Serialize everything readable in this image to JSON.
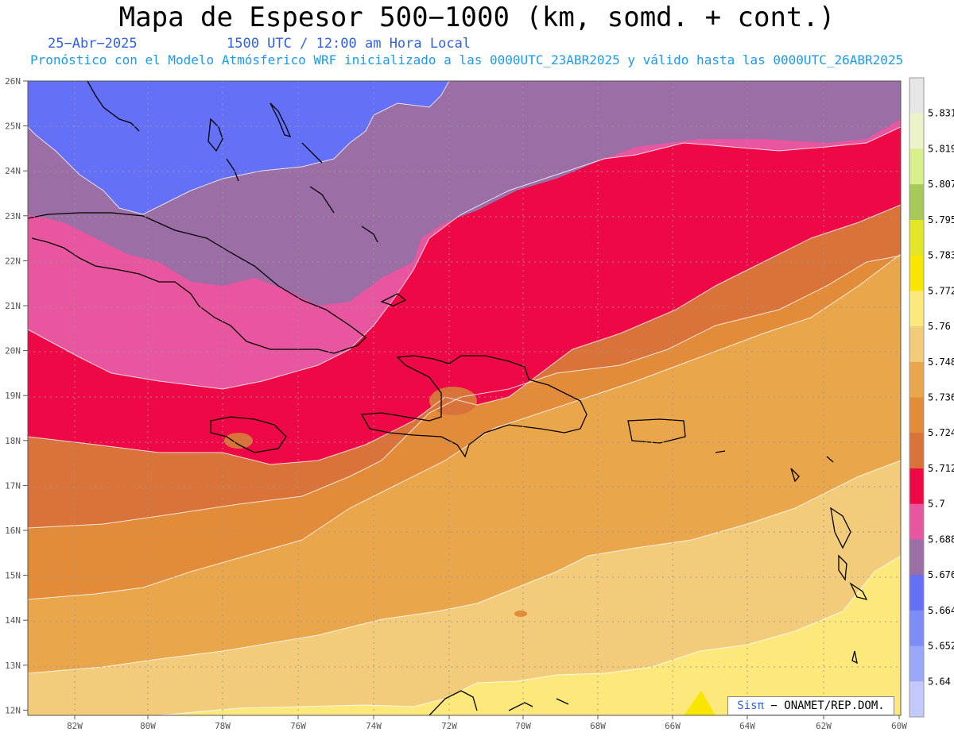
{
  "header": {
    "title": "Mapa de Espesor 500−1000 (km, somd. + cont.)",
    "date": "25−Abr−2025",
    "time": "1500 UTC / 12:00 am Hora Local",
    "forecast": "Pronóstico con el Modelo Atmósferico WRF inicializado a las 0000UTC_23ABR2025 y válido hasta las  0000UTC_26ABR2025"
  },
  "axes": {
    "lat_labels": [
      "26N",
      "25N",
      "24N",
      "23N",
      "22N",
      "21N",
      "20N",
      "19N",
      "18N",
      "17N",
      "16N",
      "15N",
      "14N",
      "13N",
      "12N"
    ],
    "lon_labels": [
      "82W",
      "80W",
      "78W",
      "76W",
      "74W",
      "72W",
      "70W",
      "68W",
      "66W",
      "64W",
      "62W",
      "60W"
    ]
  },
  "colorbar": {
    "levels": [
      "5.64",
      "5.652",
      "5.664",
      "5.676",
      "5.688",
      "5.7",
      "5.712",
      "5.724",
      "5.736",
      "5.748",
      "5.76",
      "5.772",
      "5.783",
      "5.795",
      "5.807",
      "5.819",
      "5.831"
    ],
    "colors": [
      "#c3c9fa",
      "#9ba8fa",
      "#7d8df8",
      "#6470f5",
      "#9b6ea6",
      "#e856a0",
      "#ee0845",
      "#d9733a",
      "#e28c3a",
      "#eaa64a",
      "#f2cc7a",
      "#fde87c",
      "#f9e600",
      "#e2e627",
      "#a6c95a",
      "#d8ef8c",
      "#eef2c8",
      "#e6e6e6"
    ]
  },
  "credit": {
    "sis": "Sis",
    "pi": "π",
    "rest": " − ONAMET/REP.DOM."
  }
}
